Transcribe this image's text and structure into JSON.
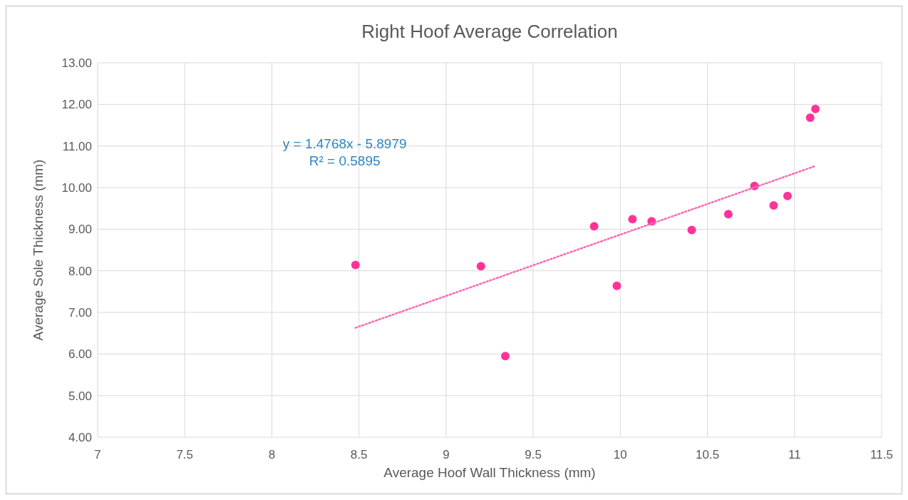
{
  "chart_data": {
    "type": "scatter",
    "title": "Right Hoof Average Correlation",
    "xlabel": "Average Hoof Wall Thickness (mm)",
    "ylabel": "Average Sole Thickness (mm)",
    "xlim": [
      7,
      11.5
    ],
    "xticks": [
      7,
      7.5,
      8,
      8.5,
      9,
      9.5,
      10,
      10.5,
      11,
      11.5
    ],
    "ylim": [
      4,
      13
    ],
    "yticks": [
      {
        "value": 4,
        "label": "4.00"
      },
      {
        "value": 5,
        "label": "5.00"
      },
      {
        "value": 6,
        "label": "6.00"
      },
      {
        "value": 7,
        "label": "7.00"
      },
      {
        "value": 8,
        "label": "8.00"
      },
      {
        "value": 9,
        "label": "9.00"
      },
      {
        "value": 10,
        "label": "10.00"
      },
      {
        "value": 11,
        "label": "11.00"
      },
      {
        "value": 12,
        "label": "12.00"
      },
      {
        "value": 13,
        "label": "13.00"
      }
    ],
    "grid": true,
    "series": [
      {
        "type": "scatter",
        "marker": "circle",
        "color": "#ff3399",
        "x": [
          8.48,
          9.2,
          9.34,
          9.85,
          9.98,
          10.07,
          10.18,
          10.41,
          10.62,
          10.77,
          10.88,
          10.96,
          11.09,
          11.12
        ],
        "values": [
          8.14,
          8.11,
          5.95,
          9.07,
          7.64,
          9.24,
          9.19,
          8.98,
          9.36,
          10.04,
          9.57,
          9.8,
          11.68,
          11.89
        ]
      },
      {
        "type": "line",
        "marker": "none",
        "color": "#ff66b2",
        "line_style": "dotted",
        "x": [
          8.48,
          11.12
        ],
        "values": [
          6.63,
          10.52
        ]
      }
    ],
    "annotations": [
      "y = 1.4768x - 5.8979",
      "R² = 0.5895"
    ]
  }
}
